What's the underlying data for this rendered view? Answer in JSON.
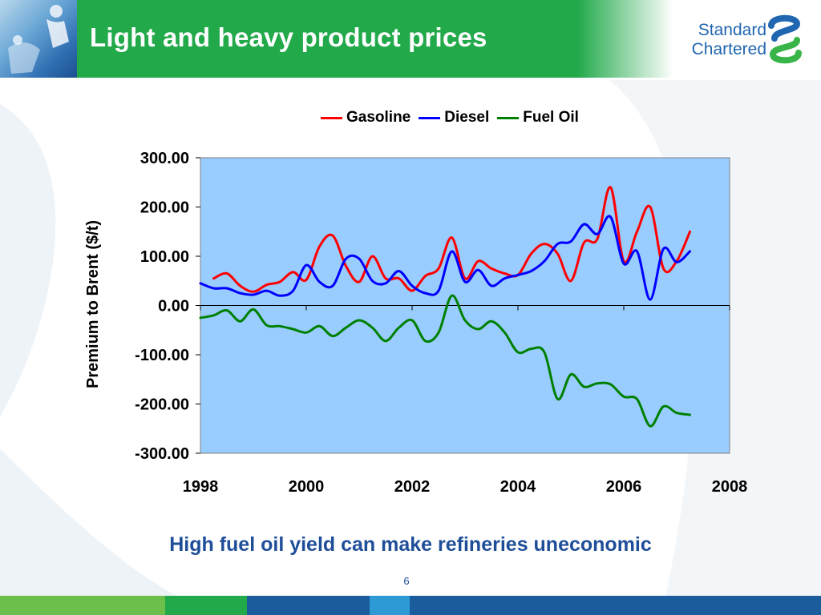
{
  "slide": {
    "title": "Light and heavy product prices",
    "caption": "High fuel oil yield can make refineries uneconomic",
    "page_number": "6"
  },
  "logo": {
    "line1": "Standard",
    "line2": "Chartered",
    "mark_icon": "standard-chartered-logo-icon"
  },
  "colors": {
    "header_green": "#21a94a",
    "plot_bg": "#99ccff",
    "gasoline": "#ff0000",
    "diesel": "#0000ff",
    "fuel_oil": "#008000",
    "caption_blue": "#1f4e99",
    "logo_blue": "#2166b0",
    "logo_green": "#38b449",
    "footer": [
      "#6cbf4a",
      "#21a94a",
      "#1a5c9c",
      "#2d9ad6",
      "#1a5c9c"
    ]
  },
  "chart_data": {
    "type": "line",
    "title": "",
    "xlabel": "",
    "ylabel": "Premium to Brent ($/t)",
    "xlim": [
      1998,
      2008
    ],
    "ylim": [
      -300,
      300
    ],
    "x_ticks": [
      "1998",
      "2000",
      "2002",
      "2004",
      "2006",
      "2008"
    ],
    "y_ticks": [
      "300.00",
      "200.00",
      "100.00",
      "0.00",
      "-100.00",
      "-200.00",
      "-300.00"
    ],
    "grid": false,
    "legend_position": "top",
    "series": [
      {
        "name": "Gasoline",
        "color": "#ff0000",
        "points": [
          [
            1998.25,
            55
          ],
          [
            1998.5,
            65
          ],
          [
            1998.75,
            40
          ],
          [
            1999.0,
            28
          ],
          [
            1999.25,
            42
          ],
          [
            1999.5,
            48
          ],
          [
            1999.75,
            68
          ],
          [
            2000.0,
            52
          ],
          [
            2000.25,
            120
          ],
          [
            2000.5,
            142
          ],
          [
            2000.75,
            80
          ],
          [
            2001.0,
            48
          ],
          [
            2001.25,
            100
          ],
          [
            2001.5,
            55
          ],
          [
            2001.75,
            55
          ],
          [
            2002.0,
            30
          ],
          [
            2002.25,
            60
          ],
          [
            2002.5,
            75
          ],
          [
            2002.75,
            138
          ],
          [
            2003.0,
            55
          ],
          [
            2003.25,
            90
          ],
          [
            2003.5,
            75
          ],
          [
            2003.75,
            65
          ],
          [
            2004.0,
            62
          ],
          [
            2004.25,
            105
          ],
          [
            2004.5,
            125
          ],
          [
            2004.75,
            105
          ],
          [
            2005.0,
            50
          ],
          [
            2005.25,
            128
          ],
          [
            2005.5,
            135
          ],
          [
            2005.75,
            240
          ],
          [
            2006.0,
            90
          ],
          [
            2006.25,
            150
          ],
          [
            2006.5,
            200
          ],
          [
            2006.75,
            75
          ],
          [
            2007.0,
            90
          ],
          [
            2007.25,
            150
          ]
        ]
      },
      {
        "name": "Diesel",
        "color": "#0000ff",
        "points": [
          [
            1998.0,
            45
          ],
          [
            1998.25,
            35
          ],
          [
            1998.5,
            35
          ],
          [
            1998.75,
            25
          ],
          [
            1999.0,
            22
          ],
          [
            1999.25,
            30
          ],
          [
            1999.5,
            20
          ],
          [
            1999.75,
            30
          ],
          [
            2000.0,
            82
          ],
          [
            2000.25,
            48
          ],
          [
            2000.5,
            40
          ],
          [
            2000.75,
            95
          ],
          [
            2001.0,
            95
          ],
          [
            2001.25,
            50
          ],
          [
            2001.5,
            45
          ],
          [
            2001.75,
            70
          ],
          [
            2002.0,
            40
          ],
          [
            2002.25,
            25
          ],
          [
            2002.5,
            30
          ],
          [
            2002.75,
            110
          ],
          [
            2003.0,
            48
          ],
          [
            2003.25,
            72
          ],
          [
            2003.5,
            40
          ],
          [
            2003.75,
            55
          ],
          [
            2004.0,
            62
          ],
          [
            2004.25,
            70
          ],
          [
            2004.5,
            90
          ],
          [
            2004.75,
            125
          ],
          [
            2005.0,
            130
          ],
          [
            2005.25,
            165
          ],
          [
            2005.5,
            145
          ],
          [
            2005.75,
            180
          ],
          [
            2006.0,
            85
          ],
          [
            2006.25,
            110
          ],
          [
            2006.5,
            12
          ],
          [
            2006.75,
            115
          ],
          [
            2007.0,
            88
          ],
          [
            2007.25,
            110
          ]
        ]
      },
      {
        "name": "Fuel Oil",
        "color": "#008000",
        "points": [
          [
            1998.0,
            -25
          ],
          [
            1998.25,
            -20
          ],
          [
            1998.5,
            -10
          ],
          [
            1998.75,
            -32
          ],
          [
            1999.0,
            -8
          ],
          [
            1999.25,
            -40
          ],
          [
            1999.5,
            -42
          ],
          [
            1999.75,
            -48
          ],
          [
            2000.0,
            -55
          ],
          [
            2000.25,
            -42
          ],
          [
            2000.5,
            -62
          ],
          [
            2000.75,
            -45
          ],
          [
            2001.0,
            -30
          ],
          [
            2001.25,
            -45
          ],
          [
            2001.5,
            -72
          ],
          [
            2001.75,
            -45
          ],
          [
            2002.0,
            -30
          ],
          [
            2002.25,
            -72
          ],
          [
            2002.5,
            -55
          ],
          [
            2002.75,
            20
          ],
          [
            2003.0,
            -30
          ],
          [
            2003.25,
            -48
          ],
          [
            2003.5,
            -32
          ],
          [
            2003.75,
            -55
          ],
          [
            2004.0,
            -95
          ],
          [
            2004.25,
            -88
          ],
          [
            2004.5,
            -95
          ],
          [
            2004.75,
            -190
          ],
          [
            2005.0,
            -140
          ],
          [
            2005.25,
            -165
          ],
          [
            2005.5,
            -158
          ],
          [
            2005.75,
            -160
          ],
          [
            2006.0,
            -185
          ],
          [
            2006.25,
            -190
          ],
          [
            2006.5,
            -245
          ],
          [
            2006.75,
            -205
          ],
          [
            2007.0,
            -218
          ],
          [
            2007.25,
            -222
          ]
        ]
      }
    ]
  }
}
